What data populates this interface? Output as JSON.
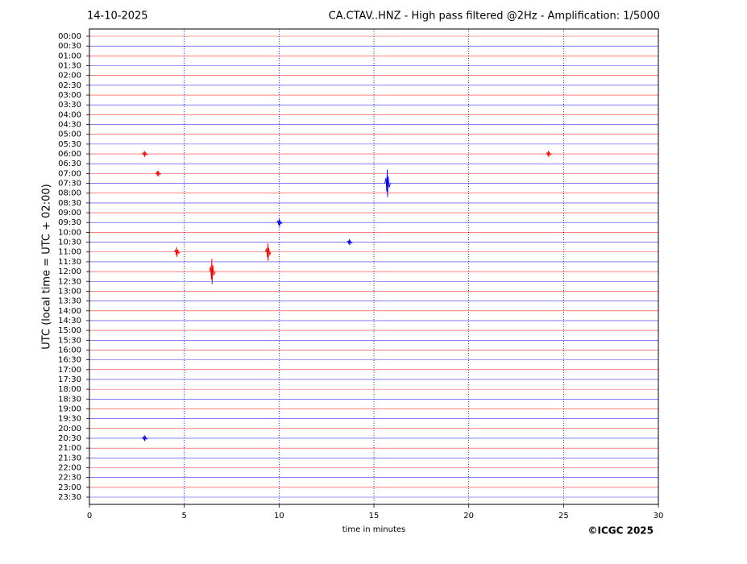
{
  "chart_data": {
    "type": "helicorder",
    "date": "14-10-2025",
    "title": "CA.CTAV..HNZ - High pass filtered @2Hz - Amplification: 1/5000",
    "xlabel": "time in minutes",
    "ylabel": "UTC (local time = UTC + 02:00)",
    "copyright": "©ICGC 2025",
    "categories": [
      "00:00",
      "00:30",
      "01:00",
      "01:30",
      "02:00",
      "02:30",
      "03:00",
      "03:30",
      "04:00",
      "04:30",
      "05:00",
      "05:30",
      "06:00",
      "06:30",
      "07:00",
      "07:30",
      "08:00",
      "08:30",
      "09:00",
      "09:30",
      "10:00",
      "10:30",
      "11:00",
      "11:30",
      "12:00",
      "12:30",
      "13:00",
      "13:30",
      "14:00",
      "14:30",
      "15:00",
      "15:30",
      "16:00",
      "16:30",
      "17:00",
      "17:30",
      "18:00",
      "18:30",
      "19:00",
      "19:30",
      "20:00",
      "20:30",
      "21:00",
      "21:30",
      "22:00",
      "22:30",
      "23:00",
      "23:30"
    ],
    "trace_colors": [
      "#ff0000",
      "#0000ff"
    ],
    "xlim": [
      0,
      30
    ],
    "xticks": [
      0,
      5,
      10,
      15,
      20,
      25,
      30
    ],
    "grid": true,
    "events": [
      {
        "row": "07:30",
        "minute": 15.7,
        "amplitude": 1.4
      },
      {
        "row": "12:00",
        "minute": 6.45,
        "amplitude": 1.3
      },
      {
        "row": "11:00",
        "minute": 9.4,
        "amplitude": 0.9
      },
      {
        "row": "11:00",
        "minute": 4.6,
        "amplitude": 0.5
      },
      {
        "row": "09:30",
        "minute": 10.0,
        "amplitude": 0.4
      },
      {
        "row": "20:30",
        "minute": 2.9,
        "amplitude": 0.3
      },
      {
        "row": "06:00",
        "minute": 2.9,
        "amplitude": 0.3
      },
      {
        "row": "06:00",
        "minute": 24.2,
        "amplitude": 0.3
      },
      {
        "row": "07:00",
        "minute": 3.6,
        "amplitude": 0.3
      },
      {
        "row": "10:30",
        "minute": 13.7,
        "amplitude": 0.3
      }
    ]
  }
}
